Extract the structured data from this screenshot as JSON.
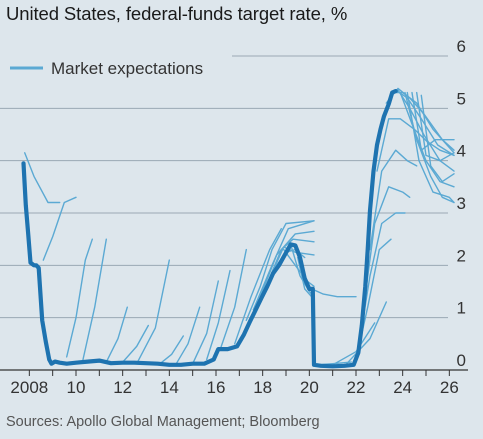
{
  "title": "United States, federal-funds target rate, %",
  "source": "Sources: Apollo Global Management; Bloomberg",
  "colors": {
    "background": "#dde6ec",
    "grid": "#9aa8b4",
    "actual": "#1e73b0",
    "expectations": "#5ba9d3"
  },
  "chart_data": {
    "type": "line",
    "title": "United States, federal-funds target rate, %",
    "xlabel": "",
    "ylabel": "%",
    "xlim": [
      2007.6,
      2026.8
    ],
    "ylim": [
      0,
      6
    ],
    "x_ticks": [
      2008,
      2010,
      2012,
      2014,
      2016,
      2018,
      2020,
      2022,
      2024,
      2026
    ],
    "x_tick_labels": [
      "2008",
      "10",
      "12",
      "14",
      "16",
      "18",
      "20",
      "22",
      "24",
      "26"
    ],
    "y_ticks": [
      0,
      1,
      2,
      3,
      4,
      5,
      6
    ],
    "y_tick_labels": [
      "0",
      "1",
      "2",
      "3",
      "4",
      "5",
      "6"
    ],
    "grid": "horizontal",
    "legend": {
      "position": "top-left",
      "entries": [
        "Market expectations"
      ]
    },
    "series": [
      {
        "kind": "actual",
        "x": [
          2007.75,
          2007.85,
          2007.95,
          2008.05,
          2008.2,
          2008.3,
          2008.4,
          2008.55,
          2008.7,
          2008.85,
          2008.95,
          2009.1,
          2009.3,
          2009.6,
          2010.0,
          2010.5,
          2011.0,
          2011.5,
          2012.0,
          2012.5,
          2013.0,
          2013.5,
          2014.0,
          2014.5,
          2015.0,
          2015.5,
          2015.9,
          2016.1,
          2016.5,
          2016.9,
          2017.2,
          2017.45,
          2017.7,
          2017.95,
          2018.2,
          2018.45,
          2018.7,
          2018.95,
          2019.2,
          2019.4,
          2019.6,
          2019.8,
          2020.0,
          2020.15,
          2020.2,
          2020.5,
          2021.0,
          2021.5,
          2021.9,
          2022.1,
          2022.25,
          2022.4,
          2022.5,
          2022.6,
          2022.75,
          2022.9,
          2023.05,
          2023.2,
          2023.4,
          2023.55,
          2023.7
        ],
        "y": [
          3.95,
          3.15,
          2.6,
          2.05,
          2.0,
          2.0,
          1.95,
          0.95,
          0.55,
          0.2,
          0.12,
          0.16,
          0.14,
          0.12,
          0.14,
          0.16,
          0.18,
          0.13,
          0.14,
          0.14,
          0.13,
          0.12,
          0.1,
          0.1,
          0.12,
          0.12,
          0.2,
          0.4,
          0.4,
          0.45,
          0.68,
          0.92,
          1.15,
          1.38,
          1.6,
          1.85,
          2.0,
          2.2,
          2.4,
          2.38,
          2.15,
          1.75,
          1.55,
          1.55,
          0.1,
          0.08,
          0.07,
          0.08,
          0.1,
          0.33,
          0.85,
          1.6,
          2.3,
          3.05,
          3.8,
          4.3,
          4.6,
          4.85,
          5.08,
          5.3,
          5.33
        ]
      },
      {
        "kind": "expectation",
        "x": [
          2007.8,
          2008.2,
          2008.8,
          2009.3
        ],
        "y": [
          4.15,
          3.7,
          3.2,
          3.2
        ]
      },
      {
        "kind": "expectation",
        "x": [
          2008.6,
          2009.0,
          2009.5,
          2010.0
        ],
        "y": [
          2.1,
          2.55,
          3.2,
          3.3
        ]
      },
      {
        "kind": "expectation",
        "x": [
          2009.6,
          2010.0,
          2010.4,
          2010.7
        ],
        "y": [
          0.25,
          1.0,
          2.1,
          2.5
        ]
      },
      {
        "kind": "expectation",
        "x": [
          2010.3,
          2010.8,
          2011.3
        ],
        "y": [
          0.2,
          1.2,
          2.5
        ]
      },
      {
        "kind": "expectation",
        "x": [
          2011.3,
          2011.8,
          2012.2
        ],
        "y": [
          0.15,
          0.6,
          1.2
        ]
      },
      {
        "kind": "expectation",
        "x": [
          2012.0,
          2012.6,
          2013.1
        ],
        "y": [
          0.15,
          0.45,
          0.85
        ]
      },
      {
        "kind": "expectation",
        "x": [
          2012.6,
          2013.4,
          2014.0
        ],
        "y": [
          0.12,
          0.8,
          2.1
        ]
      },
      {
        "kind": "expectation",
        "x": [
          2013.6,
          2014.1,
          2014.6
        ],
        "y": [
          0.12,
          0.3,
          0.65
        ]
      },
      {
        "kind": "expectation",
        "x": [
          2014.3,
          2014.8,
          2015.3
        ],
        "y": [
          0.12,
          0.5,
          1.2
        ]
      },
      {
        "kind": "expectation",
        "x": [
          2015.0,
          2015.6,
          2016.1
        ],
        "y": [
          0.12,
          0.7,
          1.7
        ]
      },
      {
        "kind": "expectation",
        "x": [
          2015.6,
          2016.1,
          2016.6
        ],
        "y": [
          0.2,
          0.9,
          1.9
        ]
      },
      {
        "kind": "expectation",
        "x": [
          2016.2,
          2016.8,
          2017.3
        ],
        "y": [
          0.42,
          1.2,
          2.3
        ]
      },
      {
        "kind": "expectation",
        "x": [
          2016.8,
          2017.5,
          2018.3,
          2018.8
        ],
        "y": [
          0.5,
          1.4,
          2.3,
          2.7
        ]
      },
      {
        "kind": "expectation",
        "x": [
          2017.3,
          2017.9,
          2018.4,
          2019.0,
          2020.2
        ],
        "y": [
          0.95,
          1.6,
          2.3,
          2.8,
          2.85
        ]
      },
      {
        "kind": "expectation",
        "x": [
          2017.6,
          2018.4,
          2019.1,
          2020.2
        ],
        "y": [
          1.15,
          2.0,
          2.7,
          2.85
        ]
      },
      {
        "kind": "expectation",
        "x": [
          2017.9,
          2018.6,
          2019.4,
          2020.2
        ],
        "y": [
          1.4,
          2.2,
          2.6,
          2.65
        ]
      },
      {
        "kind": "expectation",
        "x": [
          2018.1,
          2018.8,
          2019.3,
          2020.2
        ],
        "y": [
          1.55,
          2.3,
          2.5,
          2.45
        ]
      },
      {
        "kind": "expectation",
        "x": [
          2018.4,
          2018.9,
          2019.4,
          2020.2
        ],
        "y": [
          1.85,
          2.35,
          2.25,
          2.2
        ]
      },
      {
        "kind": "expectation",
        "x": [
          2018.6,
          2019.0,
          2019.4,
          2019.8
        ],
        "y": [
          2.0,
          2.25,
          2.3,
          2.15
        ]
      },
      {
        "kind": "expectation",
        "x": [
          2018.9,
          2019.4,
          2019.9,
          2020.2
        ],
        "y": [
          2.3,
          2.0,
          1.7,
          1.6
        ]
      },
      {
        "kind": "expectation",
        "x": [
          2019.2,
          2019.6,
          2020.0,
          2020.2
        ],
        "y": [
          2.4,
          1.8,
          1.5,
          1.4
        ]
      },
      {
        "kind": "expectation",
        "x": [
          2019.5,
          2019.8,
          2020.2
        ],
        "y": [
          2.15,
          1.55,
          1.35
        ]
      },
      {
        "kind": "expectation",
        "x": [
          2020.1,
          2020.6,
          2021.2,
          2022.0
        ],
        "y": [
          1.55,
          1.45,
          1.4,
          1.4
        ]
      },
      {
        "kind": "expectation",
        "x": [
          2020.3,
          2021.0,
          2021.8
        ],
        "y": [
          0.1,
          0.12,
          0.15
        ]
      },
      {
        "kind": "expectation",
        "x": [
          2021.0,
          2022.0,
          2022.8
        ],
        "y": [
          0.1,
          0.35,
          0.9
        ]
      },
      {
        "kind": "expectation",
        "x": [
          2021.6,
          2022.6,
          2023.3
        ],
        "y": [
          0.12,
          0.6,
          1.3
        ]
      },
      {
        "kind": "expectation",
        "x": [
          2022.0,
          2022.5,
          2023.0,
          2023.5
        ],
        "y": [
          0.2,
          1.2,
          2.3,
          2.5
        ]
      },
      {
        "kind": "expectation",
        "x": [
          2022.1,
          2022.6,
          2023.1,
          2023.7,
          2024.1
        ],
        "y": [
          0.4,
          1.8,
          2.8,
          3.0,
          3.0
        ]
      },
      {
        "kind": "expectation",
        "x": [
          2022.3,
          2022.8,
          2023.4,
          2024.0,
          2024.3
        ],
        "y": [
          1.1,
          2.8,
          3.5,
          3.4,
          3.3
        ]
      },
      {
        "kind": "expectation",
        "x": [
          2022.6,
          2023.1,
          2023.7,
          2024.2,
          2024.6
        ],
        "y": [
          2.3,
          3.8,
          4.2,
          4.0,
          3.9
        ]
      },
      {
        "kind": "expectation",
        "x": [
          2022.9,
          2023.4,
          2023.9,
          2024.5,
          2025.2
        ],
        "y": [
          3.8,
          4.8,
          4.8,
          4.6,
          4.3
        ]
      },
      {
        "kind": "expectation",
        "x": [
          2023.3,
          2023.8,
          2024.3,
          2024.9,
          2025.7,
          2026.2
        ],
        "y": [
          5.1,
          5.38,
          5.2,
          4.9,
          4.4,
          4.2
        ]
      },
      {
        "kind": "expectation",
        "x": [
          2023.5,
          2024.0,
          2024.6,
          2025.3,
          2026.2
        ],
        "y": [
          5.3,
          5.3,
          5.1,
          4.6,
          4.15
        ]
      },
      {
        "kind": "expectation",
        "x": [
          2023.7,
          2024.2,
          2024.8,
          2025.5,
          2026.2
        ],
        "y": [
          5.35,
          5.2,
          4.8,
          4.3,
          4.1
        ]
      },
      {
        "kind": "expectation",
        "x": [
          2023.8,
          2024.3,
          2024.9,
          2025.6,
          2026.2
        ],
        "y": [
          5.35,
          5.0,
          4.5,
          4.0,
          3.8
        ]
      },
      {
        "kind": "expectation",
        "x": [
          2023.9,
          2024.4,
          2025.0,
          2025.6,
          2026.2
        ],
        "y": [
          5.3,
          4.7,
          4.0,
          3.6,
          3.5
        ]
      },
      {
        "kind": "expectation",
        "x": [
          2024.1,
          2024.6,
          2025.2,
          2025.7,
          2026.2
        ],
        "y": [
          5.3,
          4.4,
          3.7,
          3.3,
          3.2
        ]
      },
      {
        "kind": "expectation",
        "x": [
          2024.2,
          2024.7,
          2025.3,
          2026.0,
          2026.2
        ],
        "y": [
          5.3,
          4.0,
          3.4,
          3.3,
          3.2
        ]
      },
      {
        "kind": "expectation",
        "x": [
          2024.4,
          2024.8,
          2025.4,
          2026.2
        ],
        "y": [
          5.3,
          4.2,
          4.4,
          4.4
        ]
      },
      {
        "kind": "expectation",
        "x": [
          2024.6,
          2025.0,
          2025.6,
          2026.2
        ],
        "y": [
          5.3,
          4.1,
          4.0,
          4.15
        ]
      },
      {
        "kind": "expectation",
        "x": [
          2024.8,
          2025.2,
          2025.7,
          2026.2
        ],
        "y": [
          5.25,
          3.9,
          3.6,
          3.75
        ]
      },
      {
        "kind": "expectation",
        "x": [
          2025.1,
          2025.6,
          2026.2
        ],
        "y": [
          4.35,
          4.2,
          4.1
        ]
      }
    ]
  }
}
